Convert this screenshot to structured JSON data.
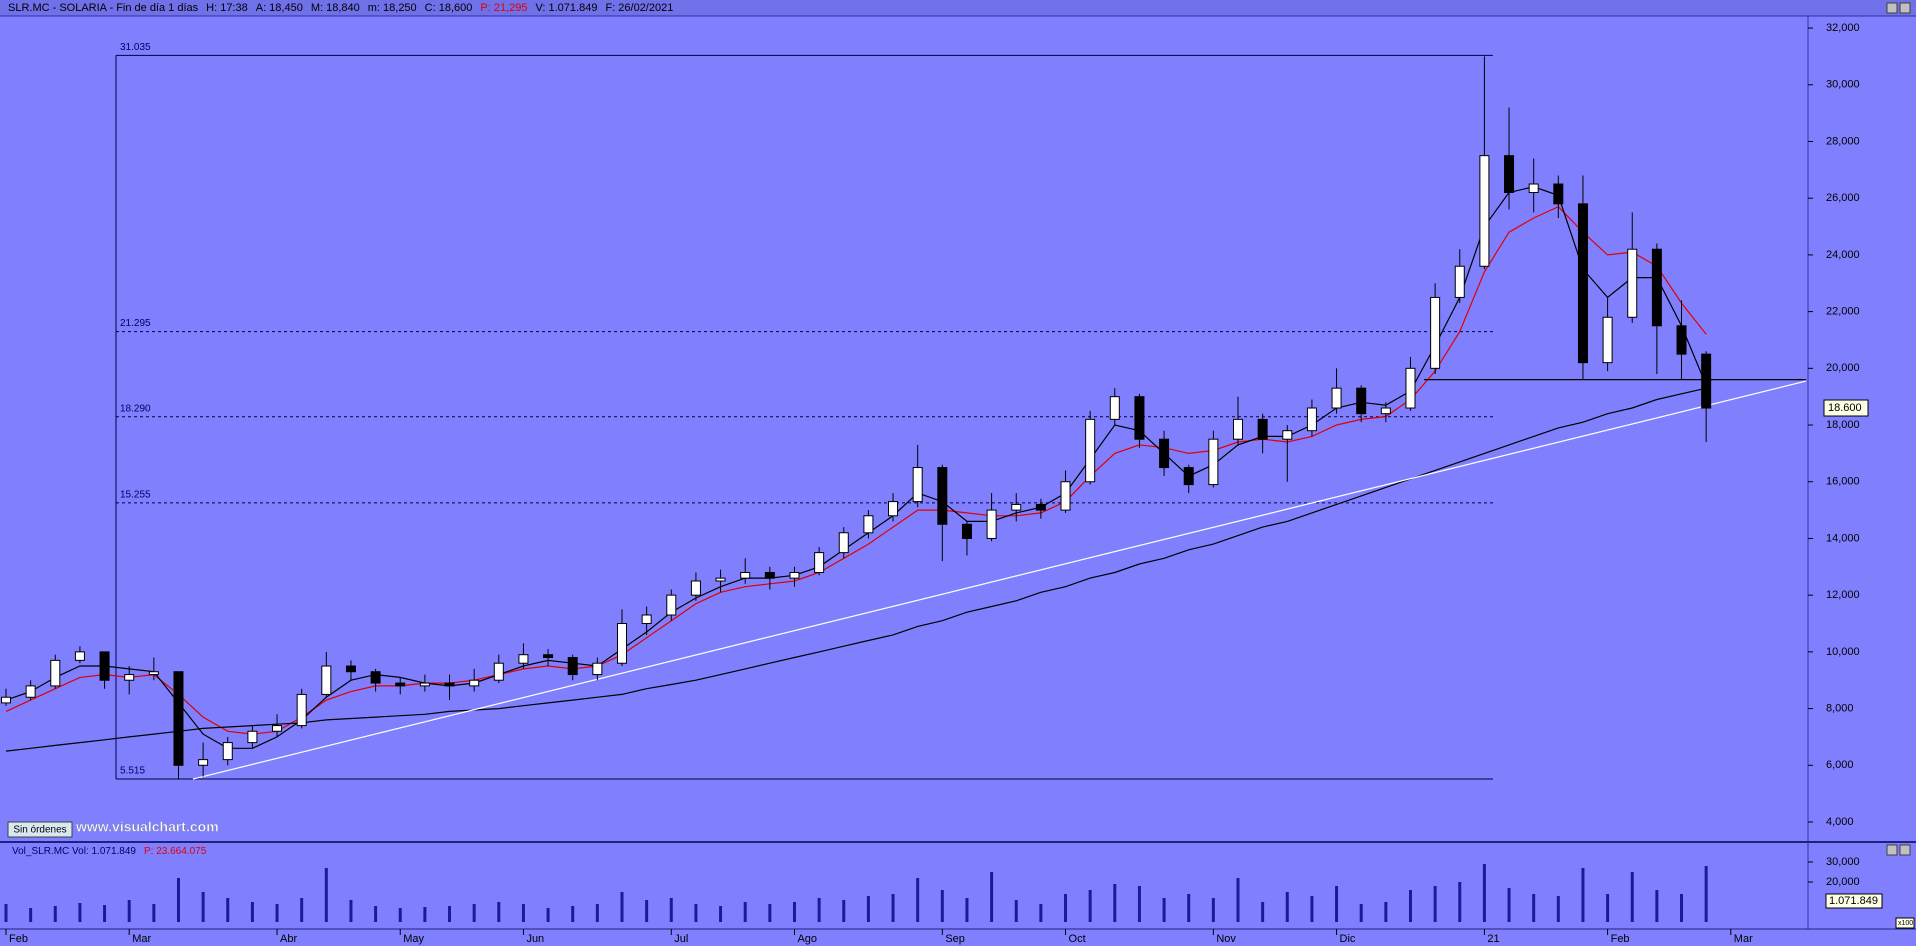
{
  "header": {
    "symbol": "SLR.MC - SOLARIA - Fin de día 1 días",
    "fields": [
      {
        "text": "H: 17:38",
        "color": "#000000"
      },
      {
        "text": "A: 18,450",
        "color": "#000000"
      },
      {
        "text": "M: 18,840",
        "color": "#000000"
      },
      {
        "text": "m: 18,250",
        "color": "#000000"
      },
      {
        "text": "C: 18,600",
        "color": "#000000"
      },
      {
        "text": "P: 21,295",
        "color": "#e00000"
      },
      {
        "text": "V: 1.071.849",
        "color": "#000000"
      },
      {
        "text": "F: 26/02/2021",
        "color": "#000000"
      }
    ]
  },
  "button": "Sin órdenes",
  "watermark": "www.visualchart.com",
  "chart_data": {
    "type": "candlestick",
    "categories": [
      "Feb",
      null,
      null,
      null,
      null,
      "Mar",
      null,
      null,
      null,
      null,
      null,
      "Abr",
      null,
      null,
      null,
      null,
      "May",
      null,
      null,
      null,
      null,
      "Jun",
      null,
      null,
      null,
      null,
      null,
      "Jul",
      null,
      null,
      null,
      null,
      "Ago",
      null,
      null,
      null,
      null,
      null,
      "Sep",
      null,
      null,
      null,
      null,
      "Oct",
      null,
      null,
      null,
      null,
      null,
      "Nov",
      null,
      null,
      null,
      null,
      "Dic",
      null,
      null,
      null,
      null,
      null,
      "21",
      null,
      null,
      null,
      null,
      "Feb",
      null,
      null,
      null,
      null,
      "Mar"
    ],
    "open": [
      8.2,
      8.4,
      8.8,
      9.7,
      10.0,
      9.0,
      9.2,
      9.3,
      6.0,
      6.2,
      6.8,
      7.2,
      7.4,
      8.5,
      9.5,
      9.3,
      8.9,
      8.8,
      8.9,
      8.8,
      9.0,
      9.6,
      9.9,
      9.8,
      9.2,
      9.6,
      11.0,
      11.3,
      12.0,
      12.5,
      12.6,
      12.8,
      12.6,
      12.8,
      13.5,
      14.2,
      14.8,
      15.3,
      16.5,
      14.5,
      14.0,
      15.0,
      15.2,
      15.0,
      16.0,
      18.2,
      19.0,
      17.5,
      16.5,
      15.9,
      17.5,
      18.2,
      17.5,
      17.8,
      18.6,
      19.3,
      18.4,
      18.6,
      20.0,
      22.5,
      23.6,
      27.5,
      26.2,
      26.5,
      25.8,
      20.2,
      21.8,
      24.2,
      21.5,
      20.5,
      null
    ],
    "high": [
      8.7,
      9.0,
      9.9,
      10.2,
      10.0,
      9.5,
      9.8,
      9.3,
      6.8,
      7.0,
      7.4,
      7.8,
      8.7,
      10.0,
      9.7,
      9.4,
      9.1,
      9.2,
      9.2,
      9.4,
      9.9,
      10.3,
      10.1,
      9.9,
      9.8,
      11.5,
      11.6,
      12.2,
      12.8,
      12.9,
      13.3,
      13.0,
      13.0,
      13.7,
      14.4,
      15.0,
      15.6,
      17.3,
      16.6,
      14.6,
      15.6,
      15.6,
      15.4,
      16.4,
      18.5,
      19.3,
      19.1,
      17.8,
      16.6,
      17.8,
      19.0,
      18.4,
      18.0,
      18.9,
      20.0,
      19.4,
      18.8,
      20.4,
      23.0,
      24.2,
      31.0,
      29.2,
      27.4,
      26.8,
      26.8,
      22.5,
      25.5,
      24.4,
      22.4,
      20.6,
      null
    ],
    "low": [
      8.1,
      8.3,
      8.7,
      9.6,
      8.7,
      8.5,
      9.0,
      5.5,
      5.6,
      6.0,
      6.6,
      7.0,
      7.3,
      8.4,
      9.0,
      8.6,
      8.5,
      8.6,
      8.3,
      8.6,
      8.9,
      9.4,
      9.5,
      9.0,
      9.0,
      9.5,
      10.6,
      11.1,
      11.8,
      12.1,
      12.4,
      12.2,
      12.3,
      12.7,
      13.3,
      14.0,
      14.6,
      15.1,
      13.2,
      13.4,
      13.9,
      14.6,
      14.7,
      14.9,
      15.9,
      18.0,
      17.2,
      16.2,
      15.6,
      15.8,
      17.3,
      17.0,
      16.0,
      17.6,
      18.4,
      18.1,
      18.1,
      18.5,
      19.8,
      22.3,
      23.5,
      25.6,
      25.5,
      25.3,
      19.6,
      19.9,
      21.6,
      19.8,
      19.6,
      17.4,
      null
    ],
    "close": [
      8.4,
      8.8,
      9.7,
      10.0,
      9.0,
      9.2,
      9.3,
      6.0,
      6.2,
      6.8,
      7.2,
      7.4,
      8.5,
      9.5,
      9.3,
      8.9,
      8.8,
      8.9,
      8.8,
      9.0,
      9.6,
      9.9,
      9.8,
      9.2,
      9.6,
      11.0,
      11.3,
      12.0,
      12.5,
      12.6,
      12.8,
      12.6,
      12.8,
      13.5,
      14.2,
      14.8,
      15.3,
      16.5,
      14.5,
      14.0,
      15.0,
      15.2,
      15.0,
      16.0,
      18.2,
      19.0,
      17.5,
      16.5,
      15.9,
      17.5,
      18.2,
      17.5,
      17.8,
      18.6,
      19.3,
      18.4,
      18.6,
      20.0,
      22.5,
      23.6,
      27.5,
      26.2,
      26.5,
      25.8,
      20.2,
      21.8,
      24.2,
      21.5,
      20.5,
      18.6,
      null
    ],
    "up_color": "#ffffff",
    "down_color": "#000000",
    "lines": [
      {
        "color": "#e00000",
        "values": [
          7.9,
          8.3,
          8.7,
          9.1,
          9.2,
          9.1,
          9.2,
          8.5,
          7.7,
          7.2,
          7.1,
          7.2,
          7.7,
          8.3,
          8.6,
          8.8,
          8.8,
          8.9,
          8.9,
          9.0,
          9.2,
          9.4,
          9.5,
          9.4,
          9.5,
          9.9,
          10.5,
          11.1,
          11.7,
          12.1,
          12.3,
          12.4,
          12.5,
          12.8,
          13.3,
          13.8,
          14.4,
          15.0,
          15.0,
          14.9,
          14.8,
          14.8,
          14.9,
          15.3,
          16.2,
          17.0,
          17.3,
          17.2,
          17.0,
          17.1,
          17.4,
          17.5,
          17.4,
          17.6,
          18.0,
          18.2,
          18.3,
          18.9,
          19.9,
          21.3,
          23.4,
          24.8,
          25.3,
          25.7,
          24.8,
          24.0,
          24.1,
          23.6,
          22.3,
          21.2,
          null
        ]
      },
      {
        "color": "#000000",
        "values": [
          8.3,
          8.6,
          9.1,
          9.5,
          9.5,
          9.4,
          9.3,
          8.2,
          7.1,
          6.6,
          6.6,
          7.0,
          7.6,
          8.4,
          9.0,
          9.2,
          9.1,
          8.9,
          8.8,
          8.9,
          9.2,
          9.5,
          9.7,
          9.6,
          9.5,
          10.1,
          10.7,
          11.4,
          11.9,
          12.3,
          12.6,
          12.6,
          12.7,
          13.0,
          13.6,
          14.2,
          14.8,
          15.6,
          15.3,
          14.6,
          14.6,
          14.9,
          15.1,
          15.6,
          16.8,
          18.0,
          17.8,
          17.0,
          16.2,
          16.6,
          17.3,
          17.6,
          17.6,
          18.0,
          18.6,
          18.8,
          18.7,
          19.2,
          20.8,
          22.5,
          25.0,
          26.2,
          26.4,
          26.1,
          23.5,
          22.5,
          23.2,
          23.2,
          21.5,
          19.4,
          null
        ]
      },
      {
        "color": "#000000",
        "values": [
          6.5,
          6.6,
          6.7,
          6.8,
          6.9,
          7.0,
          7.1,
          7.2,
          7.3,
          7.35,
          7.4,
          7.45,
          7.5,
          7.6,
          7.65,
          7.7,
          7.75,
          7.8,
          7.9,
          7.95,
          8.0,
          8.1,
          8.2,
          8.3,
          8.4,
          8.5,
          8.7,
          8.85,
          9.0,
          9.2,
          9.4,
          9.6,
          9.8,
          10.0,
          10.2,
          10.4,
          10.6,
          10.9,
          11.1,
          11.4,
          11.6,
          11.8,
          12.1,
          12.3,
          12.6,
          12.8,
          13.1,
          13.3,
          13.6,
          13.8,
          14.1,
          14.4,
          14.6,
          14.9,
          15.2,
          15.5,
          15.8,
          16.1,
          16.4,
          16.7,
          17.0,
          17.3,
          17.6,
          17.9,
          18.1,
          18.4,
          18.6,
          18.9,
          19.1,
          19.3,
          null
        ]
      }
    ],
    "levels": [
      {
        "value": 31.035,
        "label": "31.035"
      },
      {
        "value": 21.295,
        "label": "21.295"
      },
      {
        "value": 18.29,
        "label": "18.290"
      },
      {
        "value": 15.255,
        "label": "15.255"
      },
      {
        "value": 5.515,
        "label": "5.515"
      }
    ],
    "trendline": [
      5.515,
      19.55
    ],
    "support": 19.6,
    "trend_color": "#ffffff",
    "last_price": {
      "value": 18.6,
      "label": "18.600"
    },
    "ylim": [
      3.33,
      32.39
    ],
    "yticks": [
      {
        "value": 4,
        "label": "4,000"
      },
      {
        "value": 6,
        "label": "6,000"
      },
      {
        "value": 8,
        "label": "8,000"
      },
      {
        "value": 10,
        "label": "10,000"
      },
      {
        "value": 12,
        "label": "12,000"
      },
      {
        "value": 14,
        "label": "14,000"
      },
      {
        "value": 16,
        "label": "16,000"
      },
      {
        "value": 18,
        "label": "18,000"
      },
      {
        "value": 20,
        "label": "20,000"
      },
      {
        "value": 22,
        "label": "22,000"
      },
      {
        "value": 24,
        "label": "24,000"
      },
      {
        "value": 26,
        "label": "26,000"
      },
      {
        "value": 28,
        "label": "28,000"
      },
      {
        "value": 30,
        "label": "30,000"
      },
      {
        "value": 32,
        "label": "32,000"
      }
    ],
    "volume": {
      "title": "Vol_SLR.MC  Vol: 1.071.849",
      "extra": "P: 23.664.075",
      "extra_color": "#e00000",
      "color": "#1a1a9a",
      "current": "1.071.849",
      "scale": "x100",
      "ylim": [
        0,
        40000
      ],
      "yticks": [
        {
          "value": 20000,
          "label": "20,000"
        },
        {
          "value": 30000,
          "label": "30,000"
        }
      ],
      "values": [
        9000,
        7000,
        8000,
        9500,
        8500,
        11000,
        9000,
        22000,
        15000,
        12000,
        10000,
        9000,
        12000,
        27000,
        11000,
        8000,
        7000,
        7500,
        8000,
        9000,
        10000,
        9000,
        7000,
        8000,
        9000,
        15000,
        11000,
        12000,
        9000,
        8000,
        10000,
        9000,
        10000,
        12000,
        11000,
        13000,
        14000,
        22000,
        16000,
        12000,
        25000,
        11000,
        9000,
        14000,
        16000,
        19000,
        18000,
        12000,
        14000,
        12000,
        22000,
        10000,
        15000,
        13000,
        18000,
        9000,
        10000,
        16000,
        18000,
        20000,
        29000,
        17000,
        14000,
        13000,
        27000,
        14000,
        25000,
        16000,
        14000,
        28000,
        null
      ]
    }
  }
}
